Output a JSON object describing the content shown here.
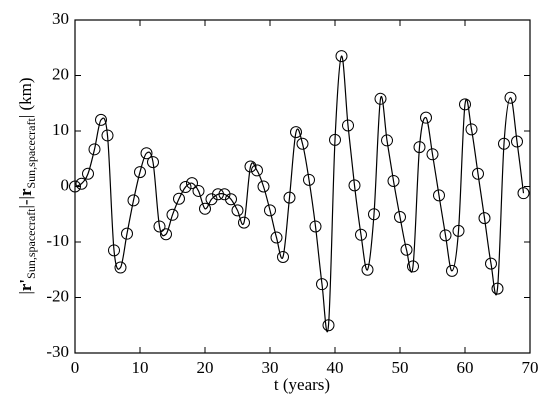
{
  "chart_data": {
    "type": "line",
    "xlabel": "t (years)",
    "ylabel_parts": [
      "|",
      "r'",
      "Sun,spacecraft",
      "|-|",
      "r",
      "Sun,spacecraft",
      "| (km)"
    ],
    "x": [
      0,
      1,
      2,
      3,
      4,
      5,
      6,
      7,
      8,
      9,
      10,
      11,
      12,
      13,
      14,
      15,
      16,
      17,
      18,
      19,
      20,
      21,
      22,
      23,
      24,
      25,
      26,
      27,
      28,
      29,
      30,
      31,
      32,
      33,
      34,
      35,
      36,
      37,
      38,
      39,
      40,
      41,
      42,
      43,
      44,
      45,
      46,
      47,
      48,
      49,
      50,
      51,
      52,
      53,
      54,
      55,
      56,
      57,
      58,
      59,
      60,
      61,
      62,
      63,
      64,
      65,
      66,
      67,
      68,
      69
    ],
    "series": [
      {
        "color": "#000000",
        "marker": "circle",
        "values": [
          0,
          0.5,
          2.3,
          6.7,
          12,
          9.2,
          -11.5,
          -14.6,
          -8.5,
          -2.5,
          2.6,
          6,
          4.4,
          -7.2,
          -8.6,
          -5.1,
          -2.2,
          -0.1,
          0.6,
          -0.8,
          -4,
          -2.3,
          -1.4,
          -1.4,
          -2.3,
          -4.3,
          -6.5,
          3.6,
          2.9,
          0,
          -4.3,
          -9.2,
          -12.7,
          -2,
          9.8,
          7.7,
          1.2,
          -7.2,
          -17.6,
          -25,
          8.4,
          23.5,
          11,
          0.2,
          -8.7,
          -15,
          -5,
          15.8,
          8.3,
          1,
          -5.5,
          -11.4,
          -14.4,
          7.1,
          12.4,
          5.8,
          -1.6,
          -8.8,
          -15.2,
          -8,
          14.8,
          10.3,
          2.3,
          -5.7,
          -13.9,
          -18.4,
          7.7,
          16,
          8.1,
          -1.2
        ]
      }
    ],
    "xlim": [
      0,
      70
    ],
    "xticks": [
      0,
      10,
      20,
      30,
      40,
      50,
      60,
      70
    ],
    "ylim": [
      -30,
      30
    ],
    "yticks": [
      -30,
      -20,
      -10,
      0,
      10,
      20,
      30
    ]
  }
}
